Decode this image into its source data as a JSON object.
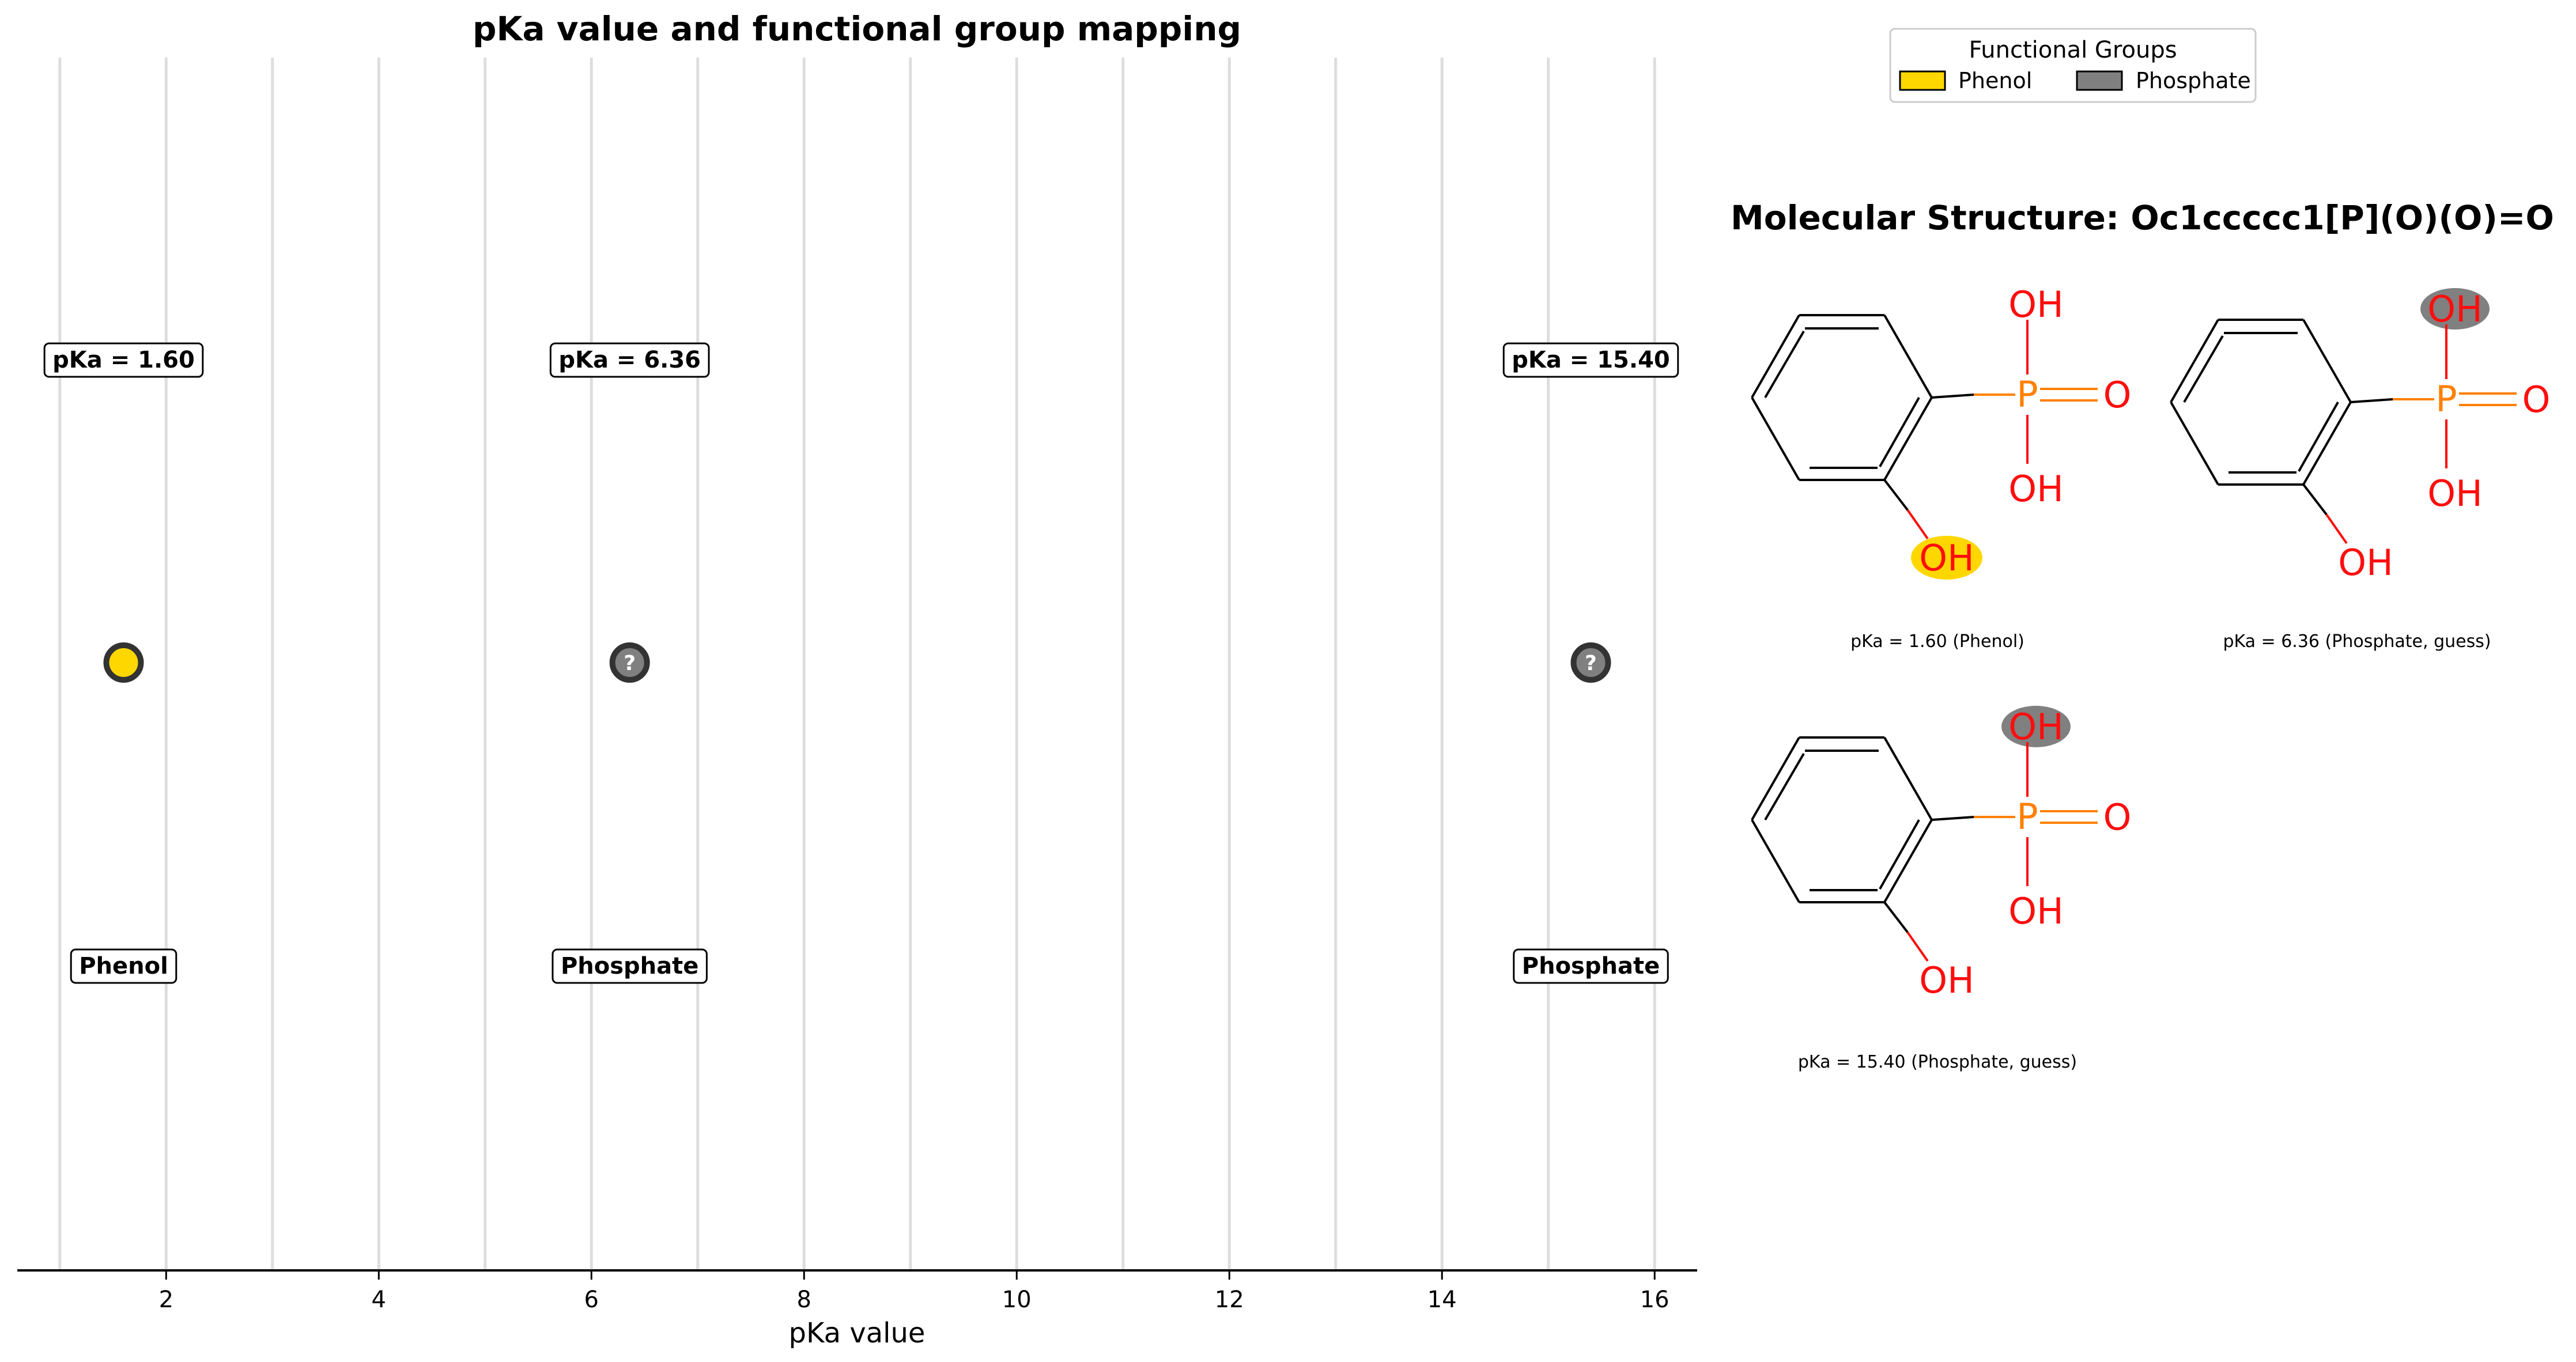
{
  "chart_data": {
    "type": "scatter",
    "title": "pKa value and functional group mapping",
    "xlabel": "pKa value",
    "ylabel": "",
    "xlim": [
      0.6,
      16.4
    ],
    "xticks": [
      2,
      4,
      6,
      8,
      10,
      12,
      14,
      16
    ],
    "vertical_gridlines": [
      1,
      2,
      3,
      4,
      5,
      6,
      7,
      8,
      9,
      10,
      11,
      12,
      13,
      14,
      15,
      16
    ],
    "points": [
      {
        "x": 1.6,
        "value_label": "pKa = 1.60",
        "group": "Phenol",
        "color": "#FFD700",
        "guess": false,
        "glyph": ""
      },
      {
        "x": 6.36,
        "value_label": "pKa = 6.36",
        "group": "Phosphate",
        "color": "#808080",
        "guess": true,
        "glyph": "?"
      },
      {
        "x": 15.4,
        "value_label": "pKa = 15.40",
        "group": "Phosphate",
        "color": "#808080",
        "guess": true,
        "glyph": "?"
      }
    ],
    "legend": {
      "title": "Functional Groups",
      "placement": "top-right",
      "entries": [
        {
          "label": "Phenol",
          "color": "#FFD700"
        },
        {
          "label": "Phosphate",
          "color": "#808080"
        }
      ]
    }
  },
  "structure_panel": {
    "title": "Molecular Structure: Oc1ccccc1[P](O)(O)=O",
    "atom_labels": {
      "hydroxyl": "OH",
      "phosphorus": "P",
      "oxygen": "O"
    },
    "colors": {
      "oxygen": "#FF0D0D",
      "phosphorus": "#FF8000",
      "bond": "#000000"
    },
    "molecules": [
      {
        "caption": "pKa = 1.60 (Phenol)",
        "highlight_color": "#FFD700",
        "highlight_site": "phenol-oh"
      },
      {
        "caption": "pKa = 6.36 (Phosphate, guess)",
        "highlight_color": "#808080",
        "highlight_site": "phosphate-top-oh"
      },
      {
        "caption": "pKa = 15.40 (Phosphate, guess)",
        "highlight_color": "#808080",
        "highlight_site": "phosphate-top-oh"
      }
    ]
  }
}
